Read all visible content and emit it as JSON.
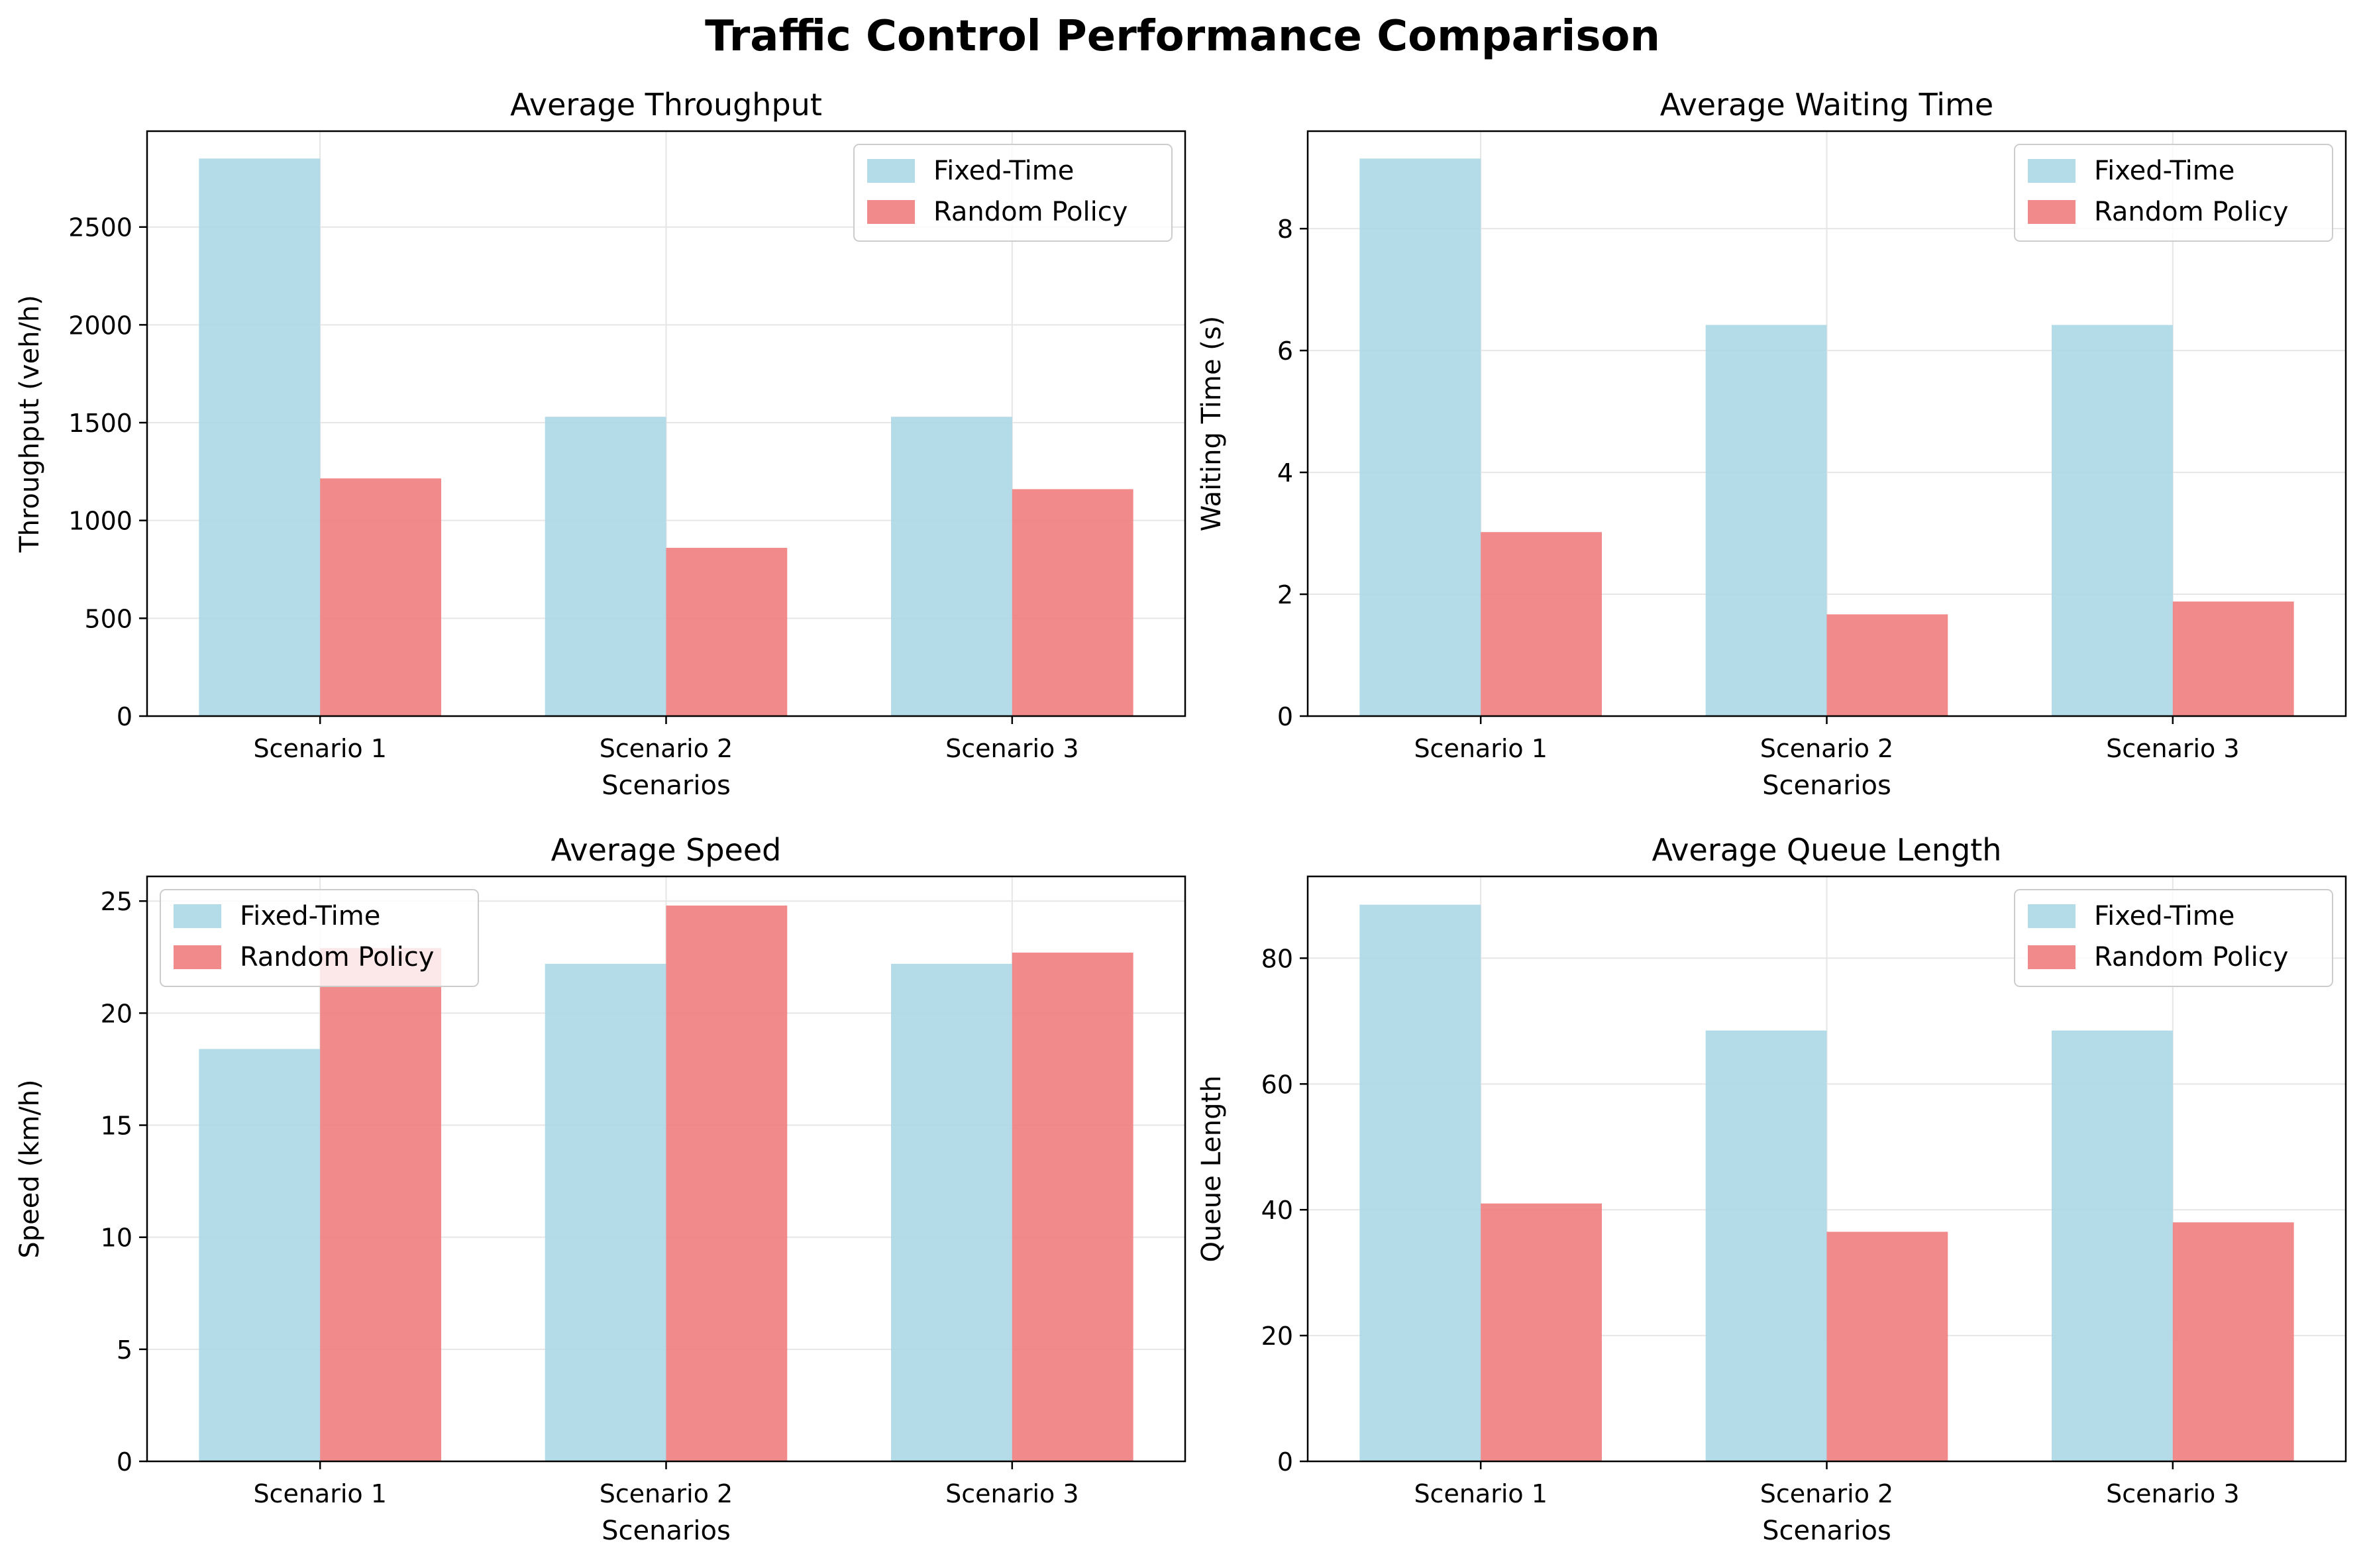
{
  "figure": {
    "suptitle": "Traffic Control Performance Comparison"
  },
  "colors": {
    "fixed_time": "#add8e6",
    "random_policy": "#f08080",
    "grid": "#e6e6e6",
    "axis": "#000000"
  },
  "chart_data": [
    {
      "type": "bar",
      "title": "Average Throughput",
      "xlabel": "Scenarios",
      "ylabel": "Throughput (veh/h)",
      "categories": [
        "Scenario 1",
        "Scenario 2",
        "Scenario 3"
      ],
      "series": [
        {
          "name": "Fixed-Time",
          "values": [
            2850,
            1530,
            1530
          ]
        },
        {
          "name": "Random Policy",
          "values": [
            1215,
            860,
            1160
          ]
        }
      ],
      "ylim": [
        0,
        2990
      ],
      "yticks": [
        0,
        500,
        1000,
        1500,
        2000,
        2500
      ],
      "grid": true,
      "legend": "upper-right"
    },
    {
      "type": "bar",
      "title": "Average Waiting Time",
      "xlabel": "Scenarios",
      "ylabel": "Waiting Time (s)",
      "categories": [
        "Scenario 1",
        "Scenario 2",
        "Scenario 3"
      ],
      "series": [
        {
          "name": "Fixed-Time",
          "values": [
            9.15,
            6.42,
            6.42
          ]
        },
        {
          "name": "Random Policy",
          "values": [
            3.02,
            1.67,
            1.88
          ]
        }
      ],
      "ylim": [
        0,
        9.6
      ],
      "yticks": [
        0,
        2,
        4,
        6,
        8
      ],
      "grid": true,
      "legend": "upper-right"
    },
    {
      "type": "bar",
      "title": "Average Speed",
      "xlabel": "Scenarios",
      "ylabel": "Speed (km/h)",
      "categories": [
        "Scenario 1",
        "Scenario 2",
        "Scenario 3"
      ],
      "series": [
        {
          "name": "Fixed-Time",
          "values": [
            18.4,
            22.2,
            22.2
          ]
        },
        {
          "name": "Random Policy",
          "values": [
            22.9,
            24.8,
            22.7
          ]
        }
      ],
      "ylim": [
        0,
        26.1
      ],
      "yticks": [
        0,
        5,
        10,
        15,
        20,
        25
      ],
      "grid": true,
      "legend": "upper-left"
    },
    {
      "type": "bar",
      "title": "Average Queue Length",
      "xlabel": "Scenarios",
      "ylabel": "Queue Length",
      "categories": [
        "Scenario 1",
        "Scenario 2",
        "Scenario 3"
      ],
      "series": [
        {
          "name": "Fixed-Time",
          "values": [
            88.5,
            68.5,
            68.5
          ]
        },
        {
          "name": "Random Policy",
          "values": [
            41.0,
            36.5,
            38.0
          ]
        }
      ],
      "ylim": [
        0,
        93
      ],
      "yticks": [
        0,
        20,
        40,
        60,
        80
      ],
      "grid": true,
      "legend": "upper-right"
    }
  ]
}
